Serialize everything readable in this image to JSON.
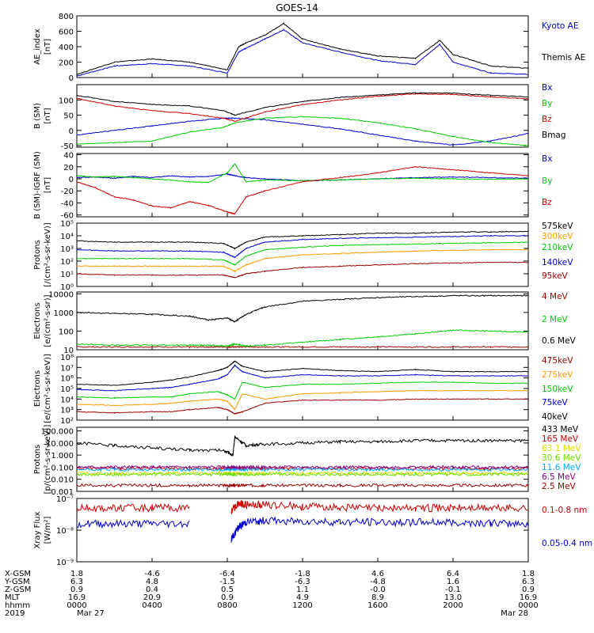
{
  "title": "GOES-14",
  "colors": {
    "black": "#000000",
    "blue": "#0000cc",
    "red": "#cc0000",
    "green": "#00cc00",
    "orange": "#ff9900",
    "darkred": "#990000",
    "yellow": "#dddd00",
    "cyan": "#00aaff",
    "lime": "#66dd00",
    "purple": "#880088"
  },
  "chart_data": [
    {
      "type": "line",
      "ylabel": "AE_index\n[nT]",
      "ylim": [
        0,
        800
      ],
      "yticks": [
        "0",
        "200",
        "400",
        "600",
        "800"
      ],
      "grid": false,
      "x_hours": [
        0,
        2,
        4,
        6,
        8,
        8.6,
        9,
        10,
        11,
        12,
        14,
        16,
        18,
        19.3,
        20,
        22,
        24
      ],
      "series": [
        {
          "name": "Kyoto AE",
          "color_key": "blue",
          "values": [
            20,
            150,
            180,
            150,
            60,
            330,
            380,
            500,
            620,
            450,
            330,
            220,
            170,
            430,
            200,
            60,
            40
          ]
        },
        {
          "name": "Themis AE",
          "color_key": "black",
          "values": [
            40,
            200,
            240,
            200,
            100,
            400,
            450,
            550,
            700,
            500,
            370,
            280,
            250,
            480,
            300,
            150,
            120
          ]
        }
      ]
    },
    {
      "type": "line",
      "ylabel": "B (SM)\n[nT]",
      "ylim": [
        -55,
        150
      ],
      "yticks": [
        "-50",
        "0",
        "50",
        "100"
      ],
      "x_hours": [
        0,
        2,
        4,
        6,
        7.8,
        8.4,
        10,
        12,
        14,
        16,
        18,
        20,
        22,
        24
      ],
      "series": [
        {
          "name": "Bx",
          "color_key": "blue",
          "values": [
            -15,
            0,
            15,
            30,
            40,
            40,
            35,
            20,
            5,
            -15,
            -35,
            -48,
            -35,
            -10
          ]
        },
        {
          "name": "By",
          "color_key": "green",
          "values": [
            -45,
            -40,
            -35,
            -5,
            10,
            25,
            40,
            45,
            40,
            25,
            5,
            -20,
            -40,
            -50
          ]
        },
        {
          "name": "Bz",
          "color_key": "red",
          "values": [
            105,
            80,
            65,
            55,
            40,
            30,
            60,
            85,
            100,
            112,
            120,
            118,
            110,
            103
          ]
        },
        {
          "name": "Bmag",
          "color_key": "black",
          "values": [
            115,
            95,
            85,
            80,
            65,
            50,
            75,
            95,
            108,
            116,
            123,
            122,
            115,
            110
          ]
        }
      ]
    },
    {
      "type": "line",
      "ylabel": "B (SM)-IGRF (SM)\n[nT]",
      "ylim": [
        -63,
        42
      ],
      "yticks": [
        "-60",
        "-40",
        "-20",
        "0",
        "20",
        "40"
      ],
      "x_hours": [
        0,
        1,
        2,
        3,
        4,
        5,
        6,
        7,
        8,
        8.4,
        9,
        10,
        12,
        14,
        16,
        18,
        20,
        22,
        24
      ],
      "series": [
        {
          "name": "Bx",
          "color_key": "blue",
          "values": [
            2,
            3,
            1,
            4,
            2,
            5,
            3,
            4,
            8,
            5,
            2,
            0,
            -3,
            -2,
            0,
            2,
            3,
            2,
            1
          ]
        },
        {
          "name": "By",
          "color_key": "green",
          "values": [
            5,
            3,
            4,
            2,
            0,
            -2,
            -5,
            -6,
            10,
            25,
            -5,
            -2,
            -3,
            -2,
            0,
            1,
            0,
            -1,
            0
          ]
        },
        {
          "name": "Bz",
          "color_key": "red",
          "values": [
            -5,
            -15,
            -30,
            -35,
            -45,
            -48,
            -38,
            -44,
            -55,
            -58,
            -30,
            -20,
            -5,
            2,
            10,
            20,
            15,
            10,
            5
          ]
        }
      ]
    },
    {
      "type": "line",
      "ylabel": "Protons\n[/(cm²-s-sr-keV)]",
      "ylim_log": [
        0,
        5
      ],
      "yticks": [
        "10⁰",
        "10¹",
        "10²",
        "10³",
        "10⁴",
        "10⁵"
      ],
      "x_hours": [
        0,
        2,
        4,
        6,
        7.8,
        8.4,
        9,
        10,
        12,
        14,
        16,
        18,
        20,
        22,
        24
      ],
      "series": [
        {
          "name": "575keV",
          "color_key": "black",
          "values": [
            3.6,
            3.5,
            3.5,
            3.5,
            3.4,
            3.0,
            3.5,
            3.9,
            4.0,
            4.1,
            4.2,
            4.2,
            4.3,
            4.3,
            4.35
          ]
        },
        {
          "name": "300keV",
          "color_key": "orange",
          "values": [
            1.6,
            1.6,
            1.6,
            1.6,
            1.6,
            1.2,
            1.7,
            2.2,
            2.5,
            2.6,
            2.7,
            2.8,
            2.85,
            2.9,
            2.9
          ]
        },
        {
          "name": "210keV",
          "color_key": "green",
          "values": [
            2.2,
            2.2,
            2.2,
            2.2,
            2.1,
            1.7,
            2.4,
            2.9,
            3.1,
            3.25,
            3.3,
            3.35,
            3.4,
            3.45,
            3.5
          ]
        },
        {
          "name": "140keV",
          "color_key": "blue",
          "values": [
            2.9,
            2.8,
            2.8,
            2.8,
            2.7,
            2.3,
            3.0,
            3.5,
            3.7,
            3.8,
            3.85,
            3.9,
            3.95,
            4.0,
            4.0
          ]
        },
        {
          "name": "95keV",
          "color_key": "darkred",
          "values": [
            1.0,
            0.9,
            0.9,
            0.9,
            0.9,
            0.7,
            1.0,
            1.2,
            1.5,
            1.6,
            1.7,
            1.8,
            1.85,
            1.9,
            1.9
          ]
        }
      ]
    },
    {
      "type": "line",
      "ylabel": "Electrons\n[e/(cm²-s-sr)]",
      "ylim_log": [
        1,
        4.1
      ],
      "yticks": [
        "10",
        "100",
        "1000",
        "10000"
      ],
      "x_hours": [
        0,
        2,
        4,
        6,
        7,
        8,
        8.4,
        9,
        10,
        12,
        14,
        16,
        18,
        20,
        22,
        24
      ],
      "series": [
        {
          "name": "4 MeV",
          "color_key": "darkred",
          "values": [
            1.15,
            1.15,
            1.15,
            1.15,
            1.15,
            1.15,
            1.15,
            1.15,
            1.15,
            1.15,
            1.15,
            1.15,
            1.15,
            1.15,
            1.15,
            1.15
          ]
        },
        {
          "name": "2 MeV",
          "color_key": "green",
          "values": [
            1.3,
            1.25,
            1.25,
            1.25,
            1.25,
            1.2,
            1.3,
            1.2,
            1.25,
            1.4,
            1.55,
            1.7,
            1.85,
            2.05,
            2.0,
            1.95
          ]
        },
        {
          "name": "0.6 MeV",
          "color_key": "black",
          "values": [
            3.0,
            2.95,
            2.9,
            2.8,
            2.6,
            2.7,
            2.5,
            2.9,
            3.3,
            3.6,
            3.7,
            3.8,
            3.85,
            3.9,
            3.9,
            3.9
          ]
        }
      ]
    },
    {
      "type": "line",
      "ylabel": "Electrons\n[e/(cm²-s-sr-keV)]",
      "ylim_log": [
        2,
        8
      ],
      "yticks": [
        "10²",
        "10³",
        "10⁴",
        "10⁵",
        "10⁶",
        "10⁷",
        "10⁸"
      ],
      "x_hours": [
        0,
        2,
        4,
        5,
        6,
        7.5,
        8,
        8.4,
        8.8,
        10,
        12,
        14,
        16,
        18,
        20,
        22,
        24
      ],
      "series": [
        {
          "name": "475keV",
          "color_key": "darkred",
          "values": [
            2.8,
            2.7,
            2.8,
            2.8,
            3.0,
            3.2,
            3.0,
            2.6,
            2.8,
            3.6,
            3.9,
            3.9,
            3.9,
            4.0,
            4.0,
            4.0,
            4.0
          ]
        },
        {
          "name": "275keV",
          "color_key": "orange",
          "values": [
            3.5,
            3.4,
            3.5,
            3.6,
            3.8,
            4.0,
            3.8,
            3.0,
            4.5,
            4.0,
            4.5,
            4.6,
            4.7,
            4.8,
            4.8,
            4.8,
            4.8
          ]
        },
        {
          "name": "150keV",
          "color_key": "green",
          "values": [
            4.2,
            4.1,
            4.2,
            4.2,
            4.5,
            4.7,
            4.4,
            4.0,
            5.6,
            5.1,
            5.4,
            5.4,
            5.5,
            5.6,
            5.6,
            5.5,
            5.5
          ]
        },
        {
          "name": "75keV",
          "color_key": "blue",
          "values": [
            4.9,
            4.8,
            5.0,
            5.1,
            5.4,
            5.9,
            6.3,
            7.2,
            6.6,
            6.0,
            6.3,
            6.2,
            6.2,
            6.3,
            6.2,
            6.2,
            6.2
          ]
        },
        {
          "name": "40keV",
          "color_key": "black",
          "values": [
            5.4,
            5.3,
            5.6,
            5.8,
            6.1,
            6.7,
            7.0,
            7.6,
            7.1,
            6.6,
            6.9,
            6.7,
            6.6,
            6.8,
            6.6,
            6.6,
            6.6
          ]
        }
      ]
    },
    {
      "type": "line",
      "ylabel": "Protons\n[p/(cm²-s-sr-keV)]",
      "ylim_log": [
        -3,
        2.3
      ],
      "yticks": [
        "0.001",
        "0.010",
        "0.100",
        "1.000",
        "10.000",
        "100.000"
      ],
      "x_hours": [
        0,
        2,
        4,
        6,
        7.8,
        8.3,
        8.4,
        9,
        10,
        12,
        14,
        16,
        18,
        20,
        22,
        24
      ],
      "series": [
        {
          "name": "433 MeV",
          "color_key": "black",
          "values": [
            1.0,
            0.8,
            0.6,
            0.4,
            0.4,
            0.0,
            1.5,
            0.8,
            0.9,
            1.0,
            1.1,
            1.1,
            1.2,
            1.2,
            1.2,
            1.2
          ]
        },
        {
          "name": "165 MeV",
          "color_key": "red",
          "values": [
            -1.1,
            -1.1,
            -1.1,
            -1.1,
            -1.1,
            -1.1,
            -1.1,
            -1.1,
            -1.1,
            -1.1,
            -1.1,
            -1.1,
            -1.1,
            -1.1,
            -1.1,
            -1.1
          ]
        },
        {
          "name": "63.1 MeV",
          "color_key": "yellow",
          "values": [
            -1.5,
            -1.5,
            -1.5,
            -1.5,
            -1.5,
            -1.5,
            -1.5,
            -1.5,
            -1.5,
            -1.5,
            -1.5,
            -1.5,
            -1.5,
            -1.5,
            -1.5,
            -1.5
          ]
        },
        {
          "name": "30.6 MeV",
          "color_key": "lime",
          "values": [
            -1.6,
            -1.6,
            -1.6,
            -1.6,
            -1.6,
            -1.6,
            -1.6,
            -1.6,
            -1.6,
            -1.6,
            -1.6,
            -1.6,
            -1.6,
            -1.6,
            -1.6,
            -1.6
          ]
        },
        {
          "name": "11.6 MeV",
          "color_key": "cyan",
          "values": [
            -1.2,
            -1.2,
            -1.2,
            -1.2,
            -1.2,
            -1.2,
            -1.2,
            -1.2,
            -1.2,
            -1.2,
            -1.2,
            -1.2,
            -1.2,
            -1.2,
            -1.2,
            -1.2
          ]
        },
        {
          "name": "6.5 MeV",
          "color_key": "purple",
          "values": [
            -1.0,
            -1.0,
            -1.0,
            -1.0,
            -1.0,
            -1.0,
            -1.0,
            -1.0,
            -1.0,
            -1.0,
            -1.0,
            -1.0,
            -1.0,
            -1.0,
            -1.0,
            -1.0
          ]
        },
        {
          "name": "2.5 MeV",
          "color_key": "darkred",
          "values": [
            -2.5,
            -2.5,
            -2.5,
            -2.5,
            -2.5,
            -2.5,
            -2.5,
            -2.5,
            -2.5,
            -2.5,
            -2.5,
            -2.5,
            -2.5,
            -2.5,
            -2.5,
            -2.5
          ]
        }
      ]
    },
    {
      "type": "line",
      "ylabel": "Xray Flux\n[W/m²]",
      "ylim_log": [
        -9,
        -7
      ],
      "yticks": [
        "10⁻⁹",
        "10⁻⁸",
        "10⁻⁷"
      ],
      "x_hours": [
        0,
        2,
        4,
        6,
        7.6,
        8.2,
        8.6,
        9,
        10,
        12,
        14,
        16,
        18,
        20,
        22,
        24
      ],
      "gap_hours": [
        6,
        7.6
      ],
      "series": [
        {
          "name": "0.1-0.8 nm",
          "color_key": "red",
          "values": [
            -7.3,
            -7.3,
            -7.3,
            -7.3,
            null,
            -7.4,
            -7.15,
            -7.2,
            -7.2,
            -7.25,
            -7.28,
            -7.3,
            -7.3,
            -7.3,
            -7.3,
            -7.3
          ]
        },
        {
          "name": "0.05-0.4 nm",
          "color_key": "blue",
          "values": [
            -7.8,
            -7.8,
            -7.8,
            -7.8,
            null,
            -8.3,
            -7.9,
            -7.75,
            -7.7,
            -7.72,
            -7.75,
            -7.75,
            -7.75,
            -7.75,
            -7.78,
            -7.8
          ]
        }
      ]
    }
  ],
  "x_axis": {
    "tick_hours": [
      0,
      4,
      8,
      12,
      16,
      20,
      24
    ],
    "rows": [
      {
        "label": "X-GSM",
        "values": [
          "1.8",
          "-4.6",
          "-6.4",
          "-1.8",
          "4.6",
          "6.4",
          "1.8"
        ]
      },
      {
        "label": "Y-GSM",
        "values": [
          "6.3",
          "4.8",
          "-1.5",
          "-6.3",
          "-4.8",
          "1.6",
          "6.3"
        ]
      },
      {
        "label": "Z-GSM",
        "values": [
          "0.9",
          "0.4",
          "0.5",
          "1.1",
          "-0.0",
          "-0.1",
          "0.9"
        ]
      },
      {
        "label": "MLT",
        "values": [
          "16.9",
          "20.9",
          "0.9",
          "4.9",
          "8.9",
          "13.0",
          "16.9"
        ]
      },
      {
        "label": "hhmm",
        "values": [
          "0000",
          "0400",
          "0800",
          "1200",
          "1600",
          "2000",
          "0000"
        ]
      }
    ],
    "year": "2019",
    "start_date": "Mar 27",
    "end_date": "Mar 28"
  }
}
